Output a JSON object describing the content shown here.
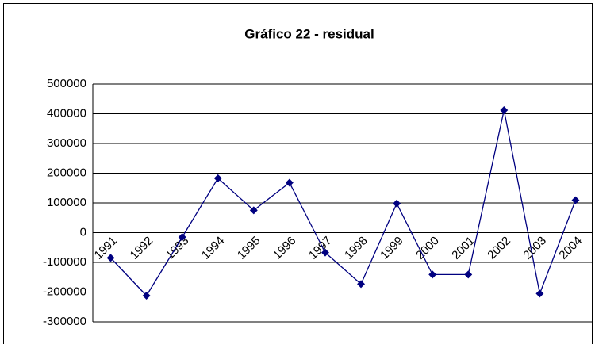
{
  "chart_data": {
    "type": "line",
    "title": "Gráfico 22 - residual",
    "categories": [
      "1991",
      "1992",
      "1993",
      "1994",
      "1995",
      "1996",
      "1997",
      "1998",
      "1999",
      "2000",
      "2001",
      "2002",
      "2003",
      "2004"
    ],
    "values": [
      -85000,
      -212000,
      -15000,
      183000,
      75000,
      168000,
      -67000,
      -173000,
      98000,
      -141000,
      -141000,
      412000,
      -205000,
      109000
    ],
    "color": "#000080",
    "ylim": [
      -300000,
      500000
    ],
    "yticks": [
      -300000,
      -200000,
      -100000,
      0,
      100000,
      200000,
      300000,
      400000,
      500000
    ],
    "grid": true
  }
}
